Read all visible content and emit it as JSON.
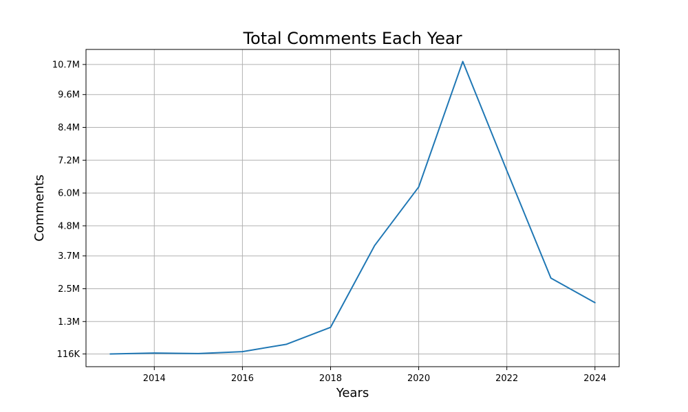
{
  "chart_data": {
    "type": "line",
    "title": "Total Comments Each Year",
    "xlabel": "Years",
    "ylabel": "Comments",
    "grid": true,
    "xlim": [
      2012.45,
      2024.55
    ],
    "ylim": [
      -350000,
      11250000
    ],
    "xticks": [
      2014,
      2016,
      2018,
      2020,
      2022,
      2024
    ],
    "xtick_labels": [
      "2014",
      "2016",
      "2018",
      "2020",
      "2022",
      "2024"
    ],
    "yticks": [
      116000,
      1300000,
      2500000,
      3700000,
      4800000,
      6000000,
      7200000,
      8400000,
      9600000,
      10700000
    ],
    "ytick_labels": [
      "116K",
      "1.3M",
      "2.5M",
      "3.7M",
      "4.8M",
      "6.0M",
      "7.2M",
      "8.4M",
      "9.6M",
      "10.7M"
    ],
    "series": [
      {
        "color": "#1f77b4",
        "x": [
          2013,
          2014,
          2015,
          2016,
          2017,
          2018,
          2019,
          2020,
          2021,
          2022,
          2023,
          2024
        ],
        "y": [
          116000,
          150000,
          130000,
          200000,
          470000,
          1090000,
          4080000,
          6220000,
          10810000,
          6820000,
          2890000,
          1990000
        ]
      }
    ]
  }
}
